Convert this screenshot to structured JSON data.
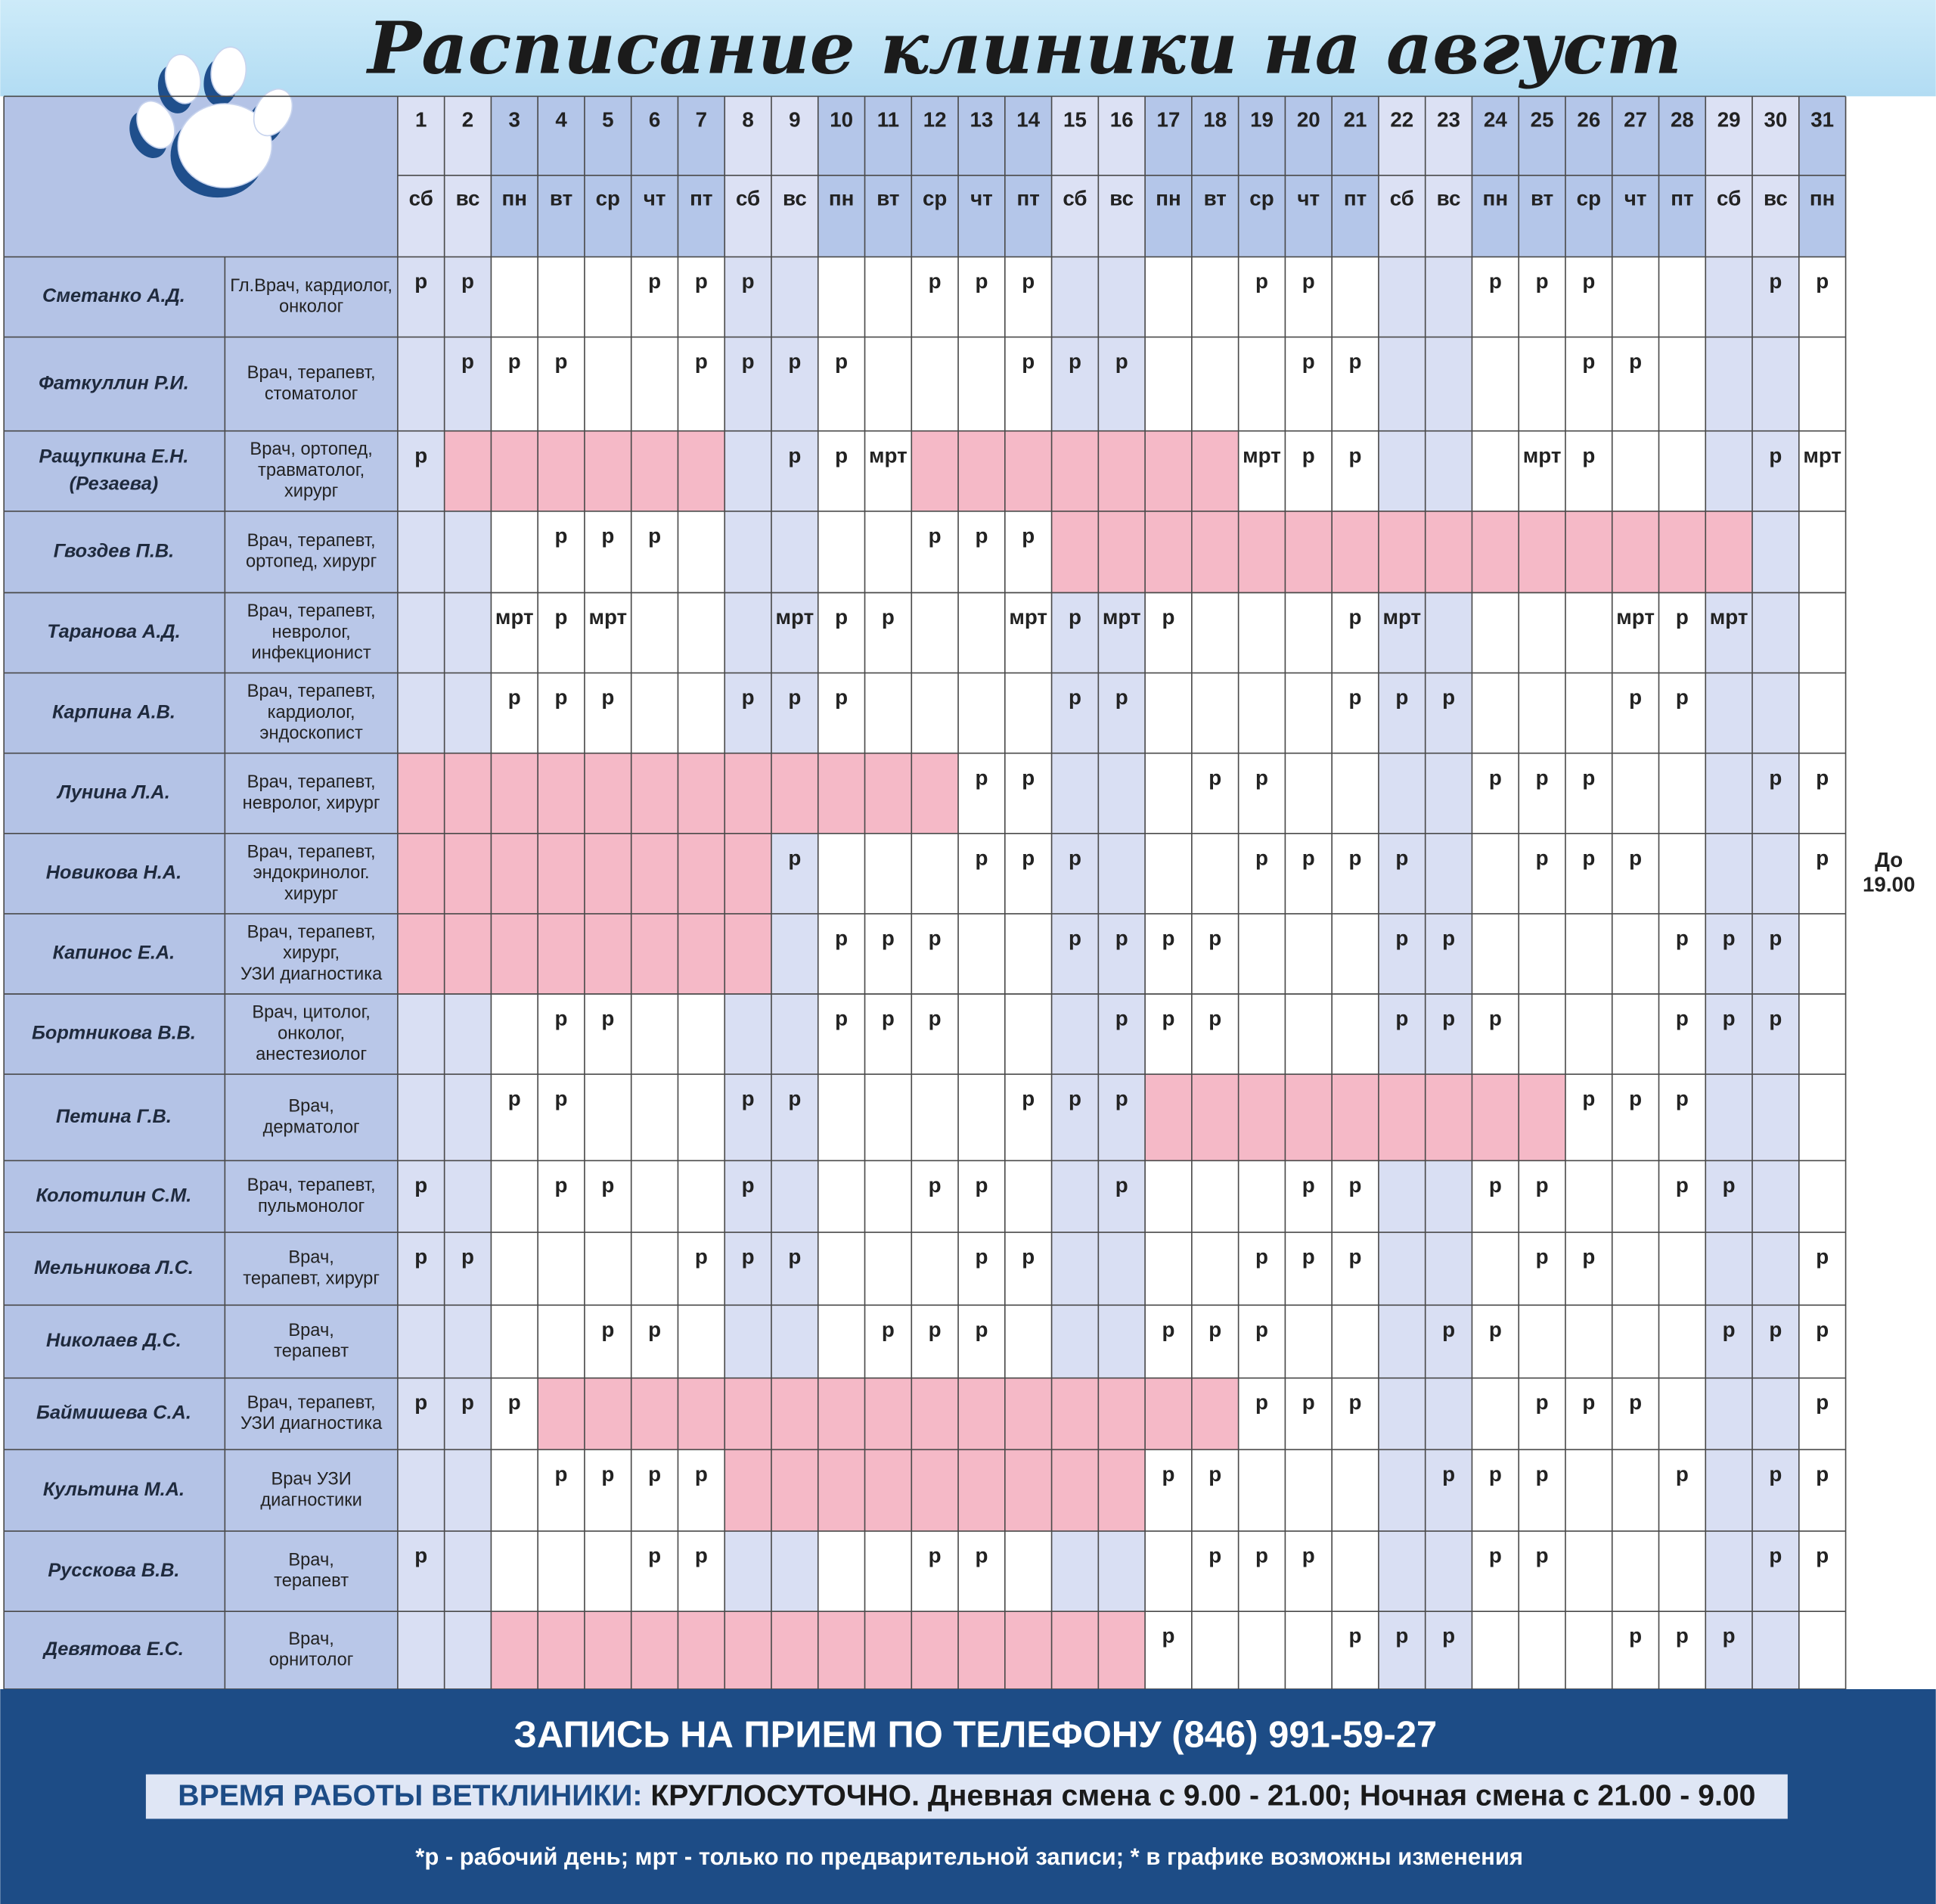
{
  "title": "Расписание клиники на август",
  "days": [
    {
      "day": 1,
      "weekday": "сб",
      "weekend": true
    },
    {
      "day": 2,
      "weekday": "вс",
      "weekend": true
    },
    {
      "day": 3,
      "weekday": "пн",
      "weekend": false
    },
    {
      "day": 4,
      "weekday": "вт",
      "weekend": false
    },
    {
      "day": 5,
      "weekday": "ср",
      "weekend": false
    },
    {
      "day": 6,
      "weekday": "чт",
      "weekend": false
    },
    {
      "day": 7,
      "weekday": "пт",
      "weekend": false
    },
    {
      "day": 8,
      "weekday": "сб",
      "weekend": true
    },
    {
      "day": 9,
      "weekday": "вс",
      "weekend": true
    },
    {
      "day": 10,
      "weekday": "пн",
      "weekend": false
    },
    {
      "day": 11,
      "weekday": "вт",
      "weekend": false
    },
    {
      "day": 12,
      "weekday": "ср",
      "weekend": false
    },
    {
      "day": 13,
      "weekday": "чт",
      "weekend": false
    },
    {
      "day": 14,
      "weekday": "пт",
      "weekend": false
    },
    {
      "day": 15,
      "weekday": "сб",
      "weekend": true
    },
    {
      "day": 16,
      "weekday": "вс",
      "weekend": true
    },
    {
      "day": 17,
      "weekday": "пн",
      "weekend": false
    },
    {
      "day": 18,
      "weekday": "вт",
      "weekend": false
    },
    {
      "day": 19,
      "weekday": "ср",
      "weekend": false
    },
    {
      "day": 20,
      "weekday": "чт",
      "weekend": false
    },
    {
      "day": 21,
      "weekday": "пт",
      "weekend": false
    },
    {
      "day": 22,
      "weekday": "сб",
      "weekend": true
    },
    {
      "day": 23,
      "weekday": "вс",
      "weekend": true
    },
    {
      "day": 24,
      "weekday": "пн",
      "weekend": false
    },
    {
      "day": 25,
      "weekday": "вт",
      "weekend": false
    },
    {
      "day": 26,
      "weekday": "ср",
      "weekend": false
    },
    {
      "day": 27,
      "weekday": "чт",
      "weekend": false
    },
    {
      "day": 28,
      "weekday": "пт",
      "weekend": false
    },
    {
      "day": 29,
      "weekday": "сб",
      "weekend": true
    },
    {
      "day": 30,
      "weekday": "вс",
      "weekend": true
    },
    {
      "day": 31,
      "weekday": "пн",
      "weekend": false
    }
  ],
  "doctors": [
    {
      "name": [
        "Сметанко А.Д."
      ],
      "role": [
        "Гл.Врач, кардиолог,",
        "онколог"
      ],
      "cells": [
        "р",
        "р",
        null,
        null,
        null,
        "р",
        "р",
        "р",
        null,
        null,
        null,
        "р",
        "р",
        "р",
        null,
        null,
        null,
        null,
        "р",
        "р",
        null,
        null,
        null,
        "р",
        "р",
        "р",
        null,
        null,
        null,
        "р",
        "р"
      ],
      "vacation": []
    },
    {
      "name": [
        "Фаткуллин Р.И."
      ],
      "role": [
        "Врач, терапевт,",
        "стоматолог"
      ],
      "cells": [
        null,
        "р",
        "р",
        "р",
        null,
        null,
        "р",
        "р",
        "р",
        "р",
        null,
        null,
        null,
        "р",
        "р",
        "р",
        null,
        null,
        null,
        "р",
        "р",
        null,
        null,
        null,
        null,
        "р",
        "р",
        null,
        null,
        null,
        null
      ],
      "vacation": []
    },
    {
      "name": [
        "Ращупкина Е.Н.",
        "(Резаева)"
      ],
      "role": [
        "Врач, ортопед,",
        "травматолог,",
        "хирург"
      ],
      "cells": [
        "р",
        null,
        null,
        null,
        null,
        null,
        null,
        null,
        "р",
        "р",
        "мрт",
        null,
        null,
        null,
        null,
        null,
        null,
        null,
        "мрт",
        "р",
        "р",
        null,
        null,
        null,
        "мрт",
        "р",
        null,
        null,
        null,
        "р",
        "мрт"
      ],
      "vacation": [
        [
          2,
          7
        ],
        [
          12,
          18
        ]
      ]
    },
    {
      "name": [
        "Гвоздев П.В."
      ],
      "role": [
        "Врач, терапевт,",
        "ортопед, хирург"
      ],
      "cells": [
        null,
        null,
        null,
        "р",
        "р",
        "р",
        null,
        null,
        null,
        null,
        null,
        "р",
        "р",
        "р",
        null,
        null,
        null,
        null,
        null,
        null,
        null,
        null,
        null,
        null,
        null,
        null,
        null,
        null,
        null,
        null,
        null
      ],
      "vacation": [
        [
          15,
          29
        ]
      ]
    },
    {
      "name": [
        "Таранова А.Д."
      ],
      "role": [
        "Врач, терапевт,",
        "невролог,",
        "инфекционист"
      ],
      "cells": [
        null,
        null,
        "мрт",
        "р",
        "мрт",
        null,
        null,
        null,
        "мрт",
        "р",
        "р",
        null,
        null,
        "мрт",
        "р",
        "мрт",
        "р",
        null,
        null,
        null,
        "р",
        "мрт",
        null,
        null,
        null,
        null,
        "мрт",
        "р",
        "мрт",
        null,
        null
      ],
      "vacation": []
    },
    {
      "name": [
        "Карпина А.В."
      ],
      "role": [
        "Врач, терапевт,",
        "кардиолог,",
        "эндоскопист"
      ],
      "cells": [
        null,
        null,
        "р",
        "р",
        "р",
        null,
        null,
        "р",
        "р",
        "р",
        null,
        null,
        null,
        null,
        "р",
        "р",
        null,
        null,
        null,
        null,
        "р",
        "р",
        "р",
        null,
        null,
        null,
        "р",
        "р",
        null,
        null,
        null
      ],
      "vacation": []
    },
    {
      "name": [
        "Лунина Л.А."
      ],
      "role": [
        "Врач, терапевт,",
        "невролог, хирург"
      ],
      "cells": [
        null,
        null,
        null,
        null,
        null,
        null,
        null,
        null,
        null,
        null,
        null,
        null,
        "р",
        "р",
        null,
        null,
        null,
        "р",
        "р",
        null,
        null,
        null,
        null,
        "р",
        "р",
        "р",
        null,
        null,
        null,
        "р",
        "р"
      ],
      "vacation": [
        [
          1,
          12
        ]
      ]
    },
    {
      "name": [
        "Новикова Н.А."
      ],
      "role": [
        "Врач, терапевт,",
        "эндокринолог.",
        "хирург"
      ],
      "cells": [
        null,
        null,
        null,
        null,
        null,
        null,
        null,
        null,
        "р",
        null,
        null,
        null,
        "р",
        "р",
        "р",
        null,
        null,
        null,
        "р",
        "р",
        "р",
        "р",
        null,
        null,
        "р",
        "р",
        "р",
        null,
        null,
        null,
        "р"
      ],
      "vacation": [
        [
          1,
          8
        ]
      ],
      "note": [
        "До",
        "19.00"
      ]
    },
    {
      "name": [
        "Капинос Е.А."
      ],
      "role": [
        "Врач, терапевт,",
        "хирург,",
        "УЗИ диагностика"
      ],
      "cells": [
        null,
        null,
        null,
        null,
        null,
        null,
        null,
        null,
        null,
        "р",
        "р",
        "р",
        null,
        null,
        "р",
        "р",
        "р",
        "р",
        null,
        null,
        null,
        "р",
        "р",
        null,
        null,
        null,
        null,
        "р",
        "р",
        "р",
        null
      ],
      "vacation": [
        [
          1,
          8
        ]
      ]
    },
    {
      "name": [
        "Бортникова В.В."
      ],
      "role": [
        "Врач, цитолог,",
        "онколог,",
        "анестезиолог"
      ],
      "cells": [
        null,
        null,
        null,
        "р",
        "р",
        null,
        null,
        null,
        null,
        "р",
        "р",
        "р",
        null,
        null,
        null,
        "р",
        "р",
        "р",
        null,
        null,
        null,
        "р",
        "р",
        "р",
        null,
        null,
        null,
        "р",
        "р",
        "р",
        null
      ],
      "vacation": []
    },
    {
      "name": [
        "Петина Г.В."
      ],
      "role": [
        "Врач,",
        "дерматолог"
      ],
      "cells": [
        null,
        null,
        "р",
        "р",
        null,
        null,
        null,
        "р",
        "р",
        null,
        null,
        null,
        null,
        "р",
        "р",
        "р",
        null,
        null,
        null,
        null,
        null,
        null,
        null,
        null,
        null,
        "р",
        "р",
        "р",
        null,
        null,
        null
      ],
      "vacation": [
        [
          17,
          25
        ]
      ]
    },
    {
      "name": [
        "Колотилин С.М."
      ],
      "role": [
        "Врач, терапевт,",
        "пульмонолог"
      ],
      "cells": [
        "р",
        null,
        null,
        "р",
        "р",
        null,
        null,
        "р",
        null,
        null,
        null,
        "р",
        "р",
        null,
        null,
        "р",
        null,
        null,
        null,
        "р",
        "р",
        null,
        null,
        "р",
        "р",
        null,
        null,
        "р",
        "р",
        null,
        null
      ],
      "vacation": []
    },
    {
      "name": [
        "Мельникова Л.С."
      ],
      "role": [
        "Врач,",
        "терапевт, хирург"
      ],
      "cells": [
        "р",
        "р",
        null,
        null,
        null,
        null,
        "р",
        "р",
        "р",
        null,
        null,
        null,
        "р",
        "р",
        null,
        null,
        null,
        null,
        "р",
        "р",
        "р",
        null,
        null,
        null,
        "р",
        "р",
        null,
        null,
        null,
        null,
        "р"
      ],
      "vacation": []
    },
    {
      "name": [
        "Николаев Д.С."
      ],
      "role": [
        "Врач,",
        "терапевт"
      ],
      "cells": [
        null,
        null,
        null,
        null,
        "р",
        "р",
        null,
        null,
        null,
        null,
        "р",
        "р",
        "р",
        null,
        null,
        null,
        "р",
        "р",
        "р",
        null,
        null,
        null,
        "р",
        "р",
        null,
        null,
        null,
        null,
        "р",
        "р",
        "р"
      ],
      "vacation": []
    },
    {
      "name": [
        "Баймишева С.А."
      ],
      "role": [
        "Врач, терапевт,",
        "УЗИ диагностика"
      ],
      "cells": [
        "р",
        "р",
        "р",
        null,
        null,
        null,
        null,
        null,
        null,
        null,
        null,
        null,
        null,
        null,
        null,
        null,
        null,
        null,
        "р",
        "р",
        "р",
        null,
        null,
        null,
        "р",
        "р",
        "р",
        null,
        null,
        null,
        "р"
      ],
      "vacation": [
        [
          4,
          18
        ]
      ]
    },
    {
      "name": [
        "Культина М.А."
      ],
      "role": [
        "Врач УЗИ",
        "диагностики"
      ],
      "cells": [
        null,
        null,
        null,
        "р",
        "р",
        "р",
        "р",
        null,
        null,
        null,
        null,
        null,
        null,
        null,
        null,
        null,
        "р",
        "р",
        null,
        null,
        null,
        null,
        "р",
        "р",
        "р",
        null,
        null,
        "р",
        null,
        "р",
        "р"
      ],
      "vacation": [
        [
          8,
          16
        ]
      ]
    },
    {
      "name": [
        "Русскова В.В."
      ],
      "role": [
        "Врач,",
        "терапевт"
      ],
      "cells": [
        "р",
        null,
        null,
        null,
        null,
        "р",
        "р",
        null,
        null,
        null,
        null,
        "р",
        "р",
        null,
        null,
        null,
        null,
        "р",
        "р",
        "р",
        null,
        null,
        null,
        "р",
        "р",
        null,
        null,
        null,
        null,
        "р",
        "р"
      ],
      "vacation": []
    },
    {
      "name": [
        "Девятова Е.С."
      ],
      "role": [
        "Врач,",
        "орнитолог"
      ],
      "cells": [
        null,
        null,
        null,
        null,
        null,
        null,
        null,
        null,
        null,
        null,
        null,
        null,
        null,
        null,
        null,
        null,
        "р",
        null,
        null,
        null,
        "р",
        "р",
        "р",
        null,
        null,
        null,
        "р",
        "р",
        "р",
        null,
        null
      ],
      "vacation": [
        [
          3,
          16
        ]
      ]
    }
  ],
  "footer": {
    "phone": "ЗАПИСЬ НА ПРИЕМ ПО ТЕЛЕФОНУ (846) 991-59-27",
    "hours_label": "ВРЕМЯ РАБОТЫ ВЕТКЛИНИКИ:",
    "hours_text": "КРУГЛОСУТОЧНО. Дневная смена с 9.00 - 21.00; Ночная смена с 21.00 - 9.00",
    "legend": "*р - рабочий день; мрт - только по предварительной записи;  * в графике возможны изменения"
  }
}
